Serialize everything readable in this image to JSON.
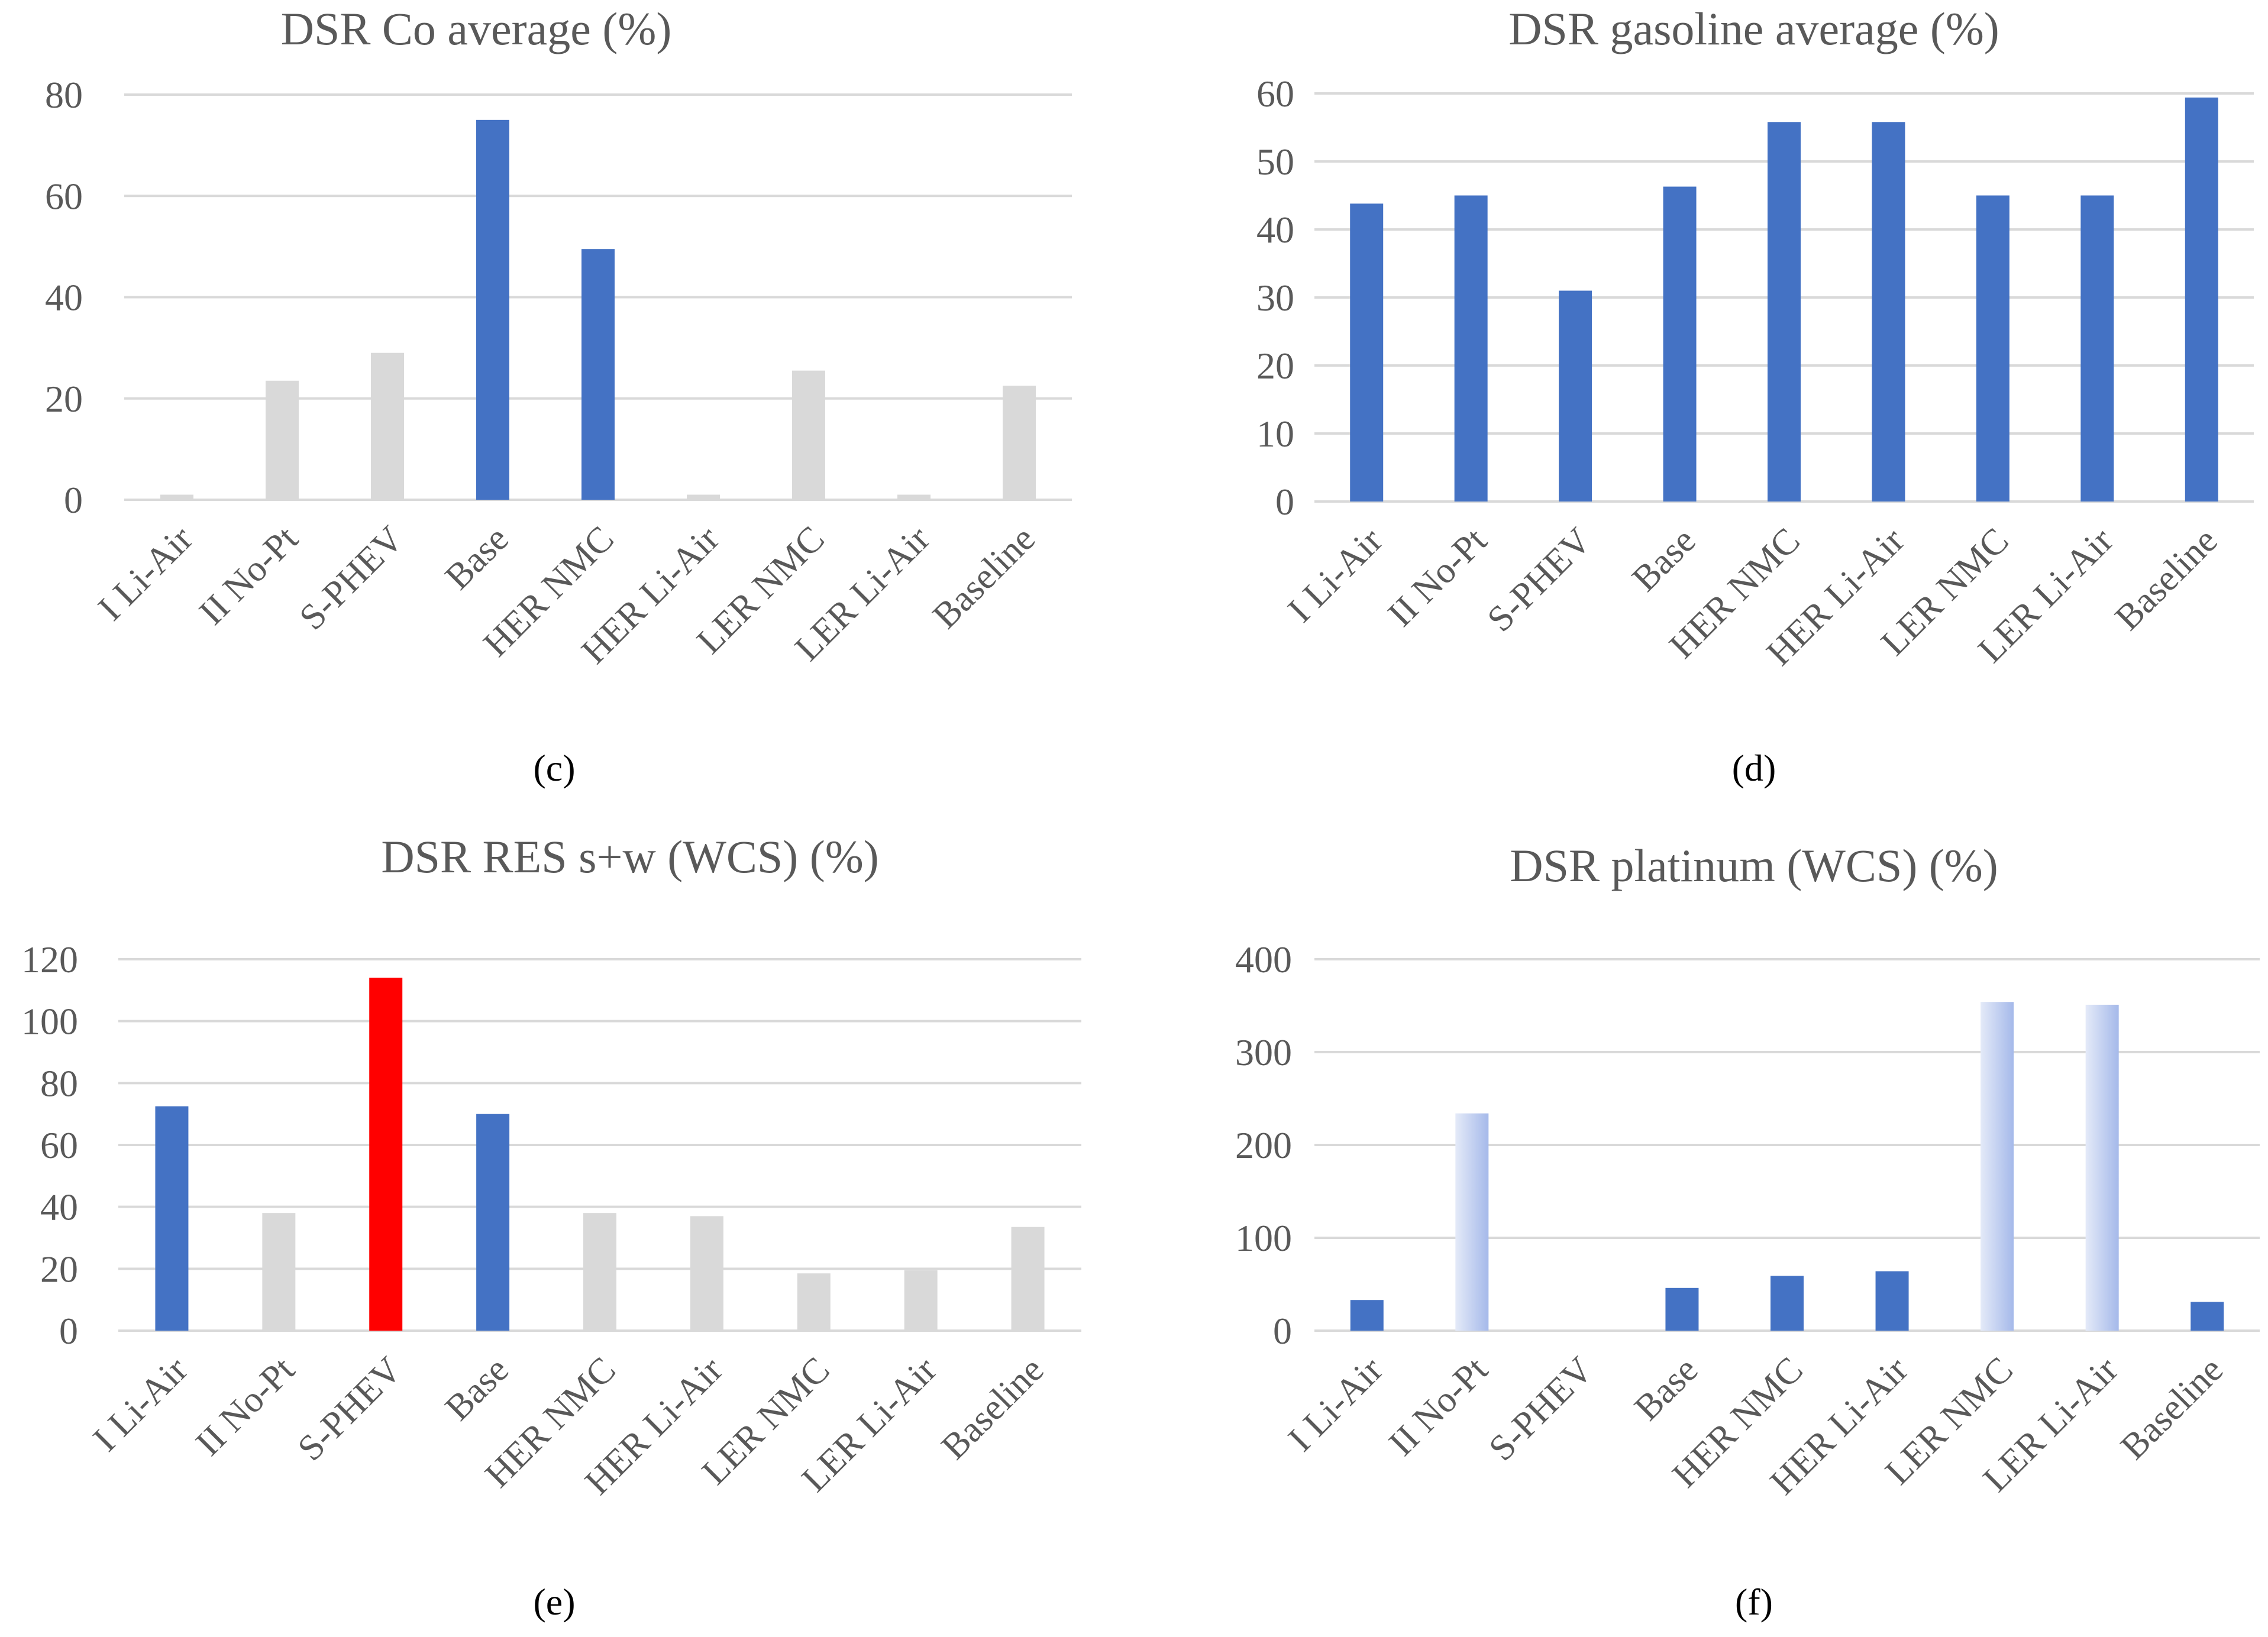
{
  "chart_data": [
    {
      "id": "c",
      "type": "bar",
      "panel_label": "(c)",
      "title": "DSR Co average (%)",
      "categories": [
        "I Li-Air",
        "II No-Pt",
        "S-PHEV",
        "Base",
        "HER NMC",
        "HER Li-Air",
        "LER NMC",
        "LER Li-Air",
        "Baseline"
      ],
      "values": [
        1,
        23.5,
        29,
        75,
        49.5,
        1,
        25.5,
        1,
        22.5
      ],
      "bar_colors": [
        "#d9d9d9",
        "#d9d9d9",
        "#d9d9d9",
        "#4472c4",
        "#4472c4",
        "#d9d9d9",
        "#d9d9d9",
        "#d9d9d9",
        "#d9d9d9"
      ],
      "yticks": [
        0,
        20,
        40,
        60,
        80
      ],
      "ylim": [
        0,
        80
      ],
      "xlabel": "",
      "ylabel": "",
      "grid": true
    },
    {
      "id": "d",
      "type": "bar",
      "panel_label": "(d)",
      "title": "DSR gasoline average (%)",
      "categories": [
        "I Li-Air",
        "II No-Pt",
        "S-PHEV",
        "Base",
        "HER NMC",
        "HER Li-Air",
        "LER NMC",
        "LER Li-Air",
        "Baseline"
      ],
      "values": [
        43.8,
        45,
        31,
        46.3,
        55.8,
        55.8,
        45,
        45,
        59.4
      ],
      "bar_colors": [
        "#4472c4",
        "#4472c4",
        "#4472c4",
        "#4472c4",
        "#4472c4",
        "#4472c4",
        "#4472c4",
        "#4472c4",
        "#4472c4"
      ],
      "yticks": [
        0,
        10,
        20,
        30,
        40,
        50,
        60
      ],
      "ylim": [
        0,
        60
      ],
      "xlabel": "",
      "ylabel": "",
      "grid": true
    },
    {
      "id": "e",
      "type": "bar",
      "panel_label": "(e)",
      "title": "DSR RES s+w (WCS) (%)",
      "categories": [
        "I Li-Air",
        "II No-Pt",
        "S-PHEV",
        "Base",
        "HER NMC",
        "HER Li-Air",
        "LER NMC",
        "LER Li-Air",
        "Baseline"
      ],
      "values": [
        72.5,
        38,
        114,
        70,
        38,
        37,
        18.5,
        19.5,
        33.5
      ],
      "bar_colors": [
        "#4472c4",
        "#d9d9d9",
        "#ff0000",
        "#4472c4",
        "#d9d9d9",
        "#d9d9d9",
        "#d9d9d9",
        "#d9d9d9",
        "#d9d9d9"
      ],
      "yticks": [
        0,
        20,
        40,
        60,
        80,
        100,
        120
      ],
      "ylim": [
        0,
        120
      ],
      "xlabel": "",
      "ylabel": "",
      "grid": true
    },
    {
      "id": "f",
      "type": "bar",
      "panel_label": "(f)",
      "title": "DSR platinum (WCS) (%)",
      "categories": [
        "I Li-Air",
        "II No-Pt",
        "S-PHEV",
        "Base",
        "HER NMC",
        "HER Li-Air",
        "LER NMC",
        "LER Li-Air",
        "Baseline"
      ],
      "values": [
        33,
        234,
        0,
        46,
        59,
        64,
        354,
        351,
        31
      ],
      "bar_colors": [
        "#4472c4",
        "gradient",
        "#4472c4",
        "#4472c4",
        "#4472c4",
        "#4472c4",
        "gradient",
        "gradient",
        "#4472c4"
      ],
      "yticks": [
        0,
        100,
        200,
        300,
        400
      ],
      "ylim": [
        0,
        400
      ],
      "xlabel": "",
      "ylabel": "",
      "grid": true
    }
  ]
}
